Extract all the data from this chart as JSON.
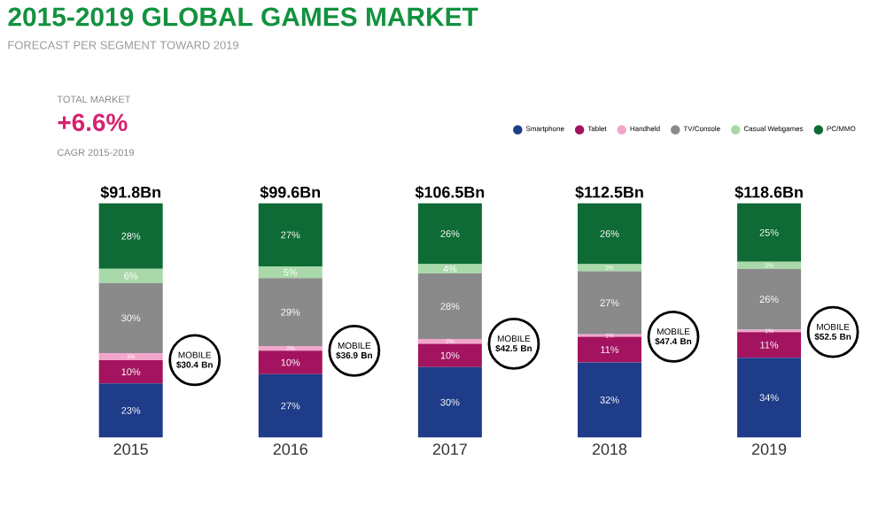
{
  "chart_data": {
    "type": "bar",
    "stacked": true,
    "legend": "top right",
    "title": "2015-2019 GLOBAL GAMES MARKET",
    "subtitle": "FORECAST PER SEGMENT TOWARD 2019",
    "categories": [
      "2015",
      "2016",
      "2017",
      "2018",
      "2019"
    ],
    "series": [
      {
        "name": "Smartphone",
        "color": "#1f3c88",
        "values": [
          23,
          27,
          30,
          32,
          34
        ],
        "value_labels": [
          "23%",
          "27%",
          "30%",
          "32%",
          "34%"
        ]
      },
      {
        "name": "Tablet",
        "color": "#a3135f",
        "values": [
          10,
          10,
          10,
          11,
          11
        ],
        "value_labels": [
          "10%",
          "10%",
          "10%",
          "11%",
          "11%"
        ]
      },
      {
        "name": "Handheld",
        "color": "#f2a6cc",
        "values": [
          3,
          2,
          2,
          1,
          1
        ],
        "value_labels": [
          "3%",
          "2%",
          "2%",
          "1%",
          "1%"
        ]
      },
      {
        "name": "TV/Console",
        "color": "#8a8a8a",
        "values": [
          30,
          29,
          28,
          27,
          26
        ],
        "value_labels": [
          "30%",
          "29%",
          "28%",
          "27%",
          "26%"
        ]
      },
      {
        "name": "Casual Webgames",
        "color": "#a9d9a9",
        "values": [
          6,
          5,
          4,
          3,
          3
        ],
        "value_labels": [
          "6%",
          "5%",
          "4%",
          "3%",
          "3%"
        ]
      },
      {
        "name": "PC/MMO",
        "color": "#0f6b35",
        "values": [
          28,
          27,
          26,
          26,
          25
        ],
        "value_labels": [
          "28%",
          "27%",
          "26%",
          "26%",
          "25%"
        ]
      }
    ],
    "annotations": [
      "TOTAL MARKET",
      "+6.6%",
      "CAGR 2015-2019",
      "$91.8Bn",
      "$99.6Bn",
      "$106.5Bn",
      "$112.5Bn",
      "$118.6Bn",
      "MOBILE **$30.4 Bn**",
      "MOBILE **$36.9 Bn**",
      "MOBILE **$42.5 Bn**",
      "MOBILE **$47.4 Bn**",
      "MOBILE **$52.5 Bn**"
    ]
  }
}
